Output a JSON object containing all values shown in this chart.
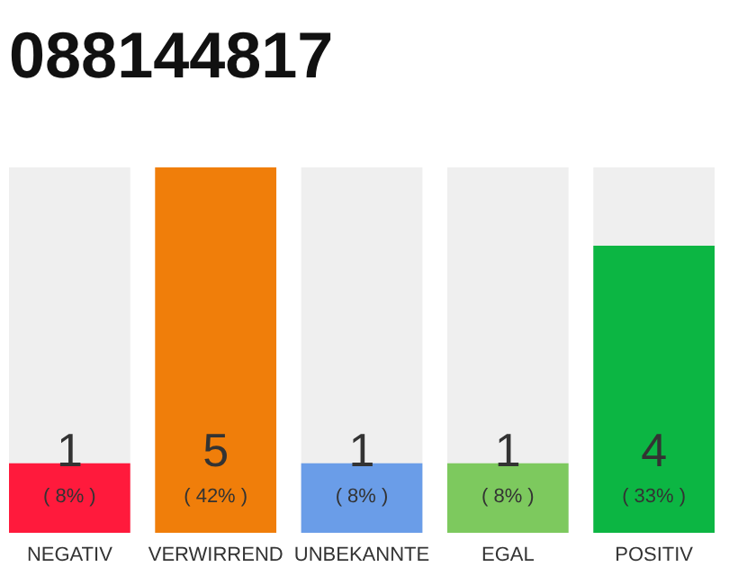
{
  "chart_data": {
    "type": "bar",
    "title": "088144817",
    "categories": [
      "NEGATIV",
      "VERWIRREND",
      "UNBEKANNTE",
      "EGAL",
      "POSITIV"
    ],
    "values": [
      8,
      42,
      8,
      8,
      33
    ],
    "colors": [
      "#ff1a3c",
      "#f07e0a",
      "#6a9de8",
      "#7dc95e",
      "#0cb643"
    ],
    "value_labels": [
      "( 8% )",
      "( 42% )",
      "( 8% )",
      "( 8% )",
      "( 33% )"
    ],
    "annotations": [
      "1",
      "5",
      "1",
      "1",
      "4"
    ],
    "grid": false
  }
}
